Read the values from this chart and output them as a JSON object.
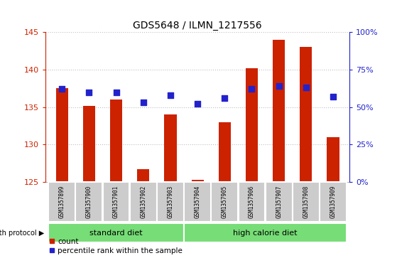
{
  "title": "GDS5648 / ILMN_1217556",
  "samples": [
    "GSM1357899",
    "GSM1357900",
    "GSM1357901",
    "GSM1357902",
    "GSM1357903",
    "GSM1357904",
    "GSM1357905",
    "GSM1357906",
    "GSM1357907",
    "GSM1357908",
    "GSM1357909"
  ],
  "counts": [
    137.5,
    135.2,
    136.0,
    126.7,
    134.0,
    125.3,
    133.0,
    140.2,
    144.0,
    143.0,
    131.0
  ],
  "percentiles": [
    62,
    60,
    60,
    53,
    58,
    52,
    56,
    62,
    64,
    63,
    57
  ],
  "ylim_left": [
    125,
    145
  ],
  "ylim_right": [
    0,
    100
  ],
  "yticks_left": [
    125,
    130,
    135,
    140,
    145
  ],
  "yticks_right": [
    0,
    25,
    50,
    75,
    100
  ],
  "yticklabels_right": [
    "0%",
    "25%",
    "50%",
    "75%",
    "100%"
  ],
  "bar_color": "#cc2200",
  "dot_color": "#2222cc",
  "bar_width": 0.45,
  "bar_bottom": 125,
  "dot_size": 30,
  "grid_color": "#000000",
  "grid_alpha": 0.25,
  "standard_diet_indices": [
    0,
    1,
    2,
    3,
    4
  ],
  "high_calorie_indices": [
    5,
    6,
    7,
    8,
    9,
    10
  ],
  "standard_diet_label": "standard diet",
  "high_calorie_label": "high calorie diet",
  "group_label": "growth protocol",
  "group_box_color": "#77dd77",
  "sample_box_color": "#cccccc",
  "legend_count_label": "count",
  "legend_percentile_label": "percentile rank within the sample",
  "left_axis_color": "#cc2200",
  "right_axis_color": "#2222cc",
  "title_fontsize": 10,
  "axis_fontsize": 8,
  "sample_fontsize": 5.5,
  "group_fontsize": 8,
  "legend_fontsize": 7.5
}
